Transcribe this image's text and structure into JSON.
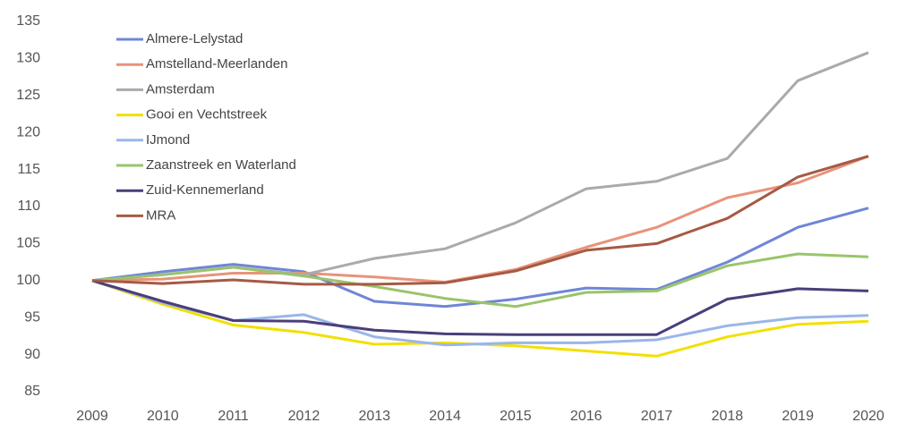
{
  "chart_data": {
    "type": "line",
    "categories": [
      "2009",
      "2010",
      "2011",
      "2012",
      "2013",
      "2014",
      "2015",
      "2016",
      "2017",
      "2018",
      "2019",
      "2020"
    ],
    "series": [
      {
        "name": "Almere-Lelystad",
        "color": "#6f86d6",
        "values": [
          100,
          101.2,
          102.2,
          101.2,
          97.2,
          96.5,
          97.5,
          99,
          98.8,
          102.5,
          107.2,
          109.8
        ]
      },
      {
        "name": "Amstelland-Meerlanden",
        "color": "#e8937a",
        "values": [
          100,
          100.2,
          101,
          101,
          100.5,
          99.8,
          101.5,
          104.5,
          107.2,
          111.2,
          113.2,
          116.8
        ]
      },
      {
        "name": "Amsterdam",
        "color": "#aaaaaa",
        "values": [
          100,
          100.8,
          101.8,
          100.8,
          103,
          104.3,
          107.8,
          112.4,
          113.4,
          116.5,
          127,
          130.8
        ]
      },
      {
        "name": "Gooi en Vechtstreek",
        "color": "#f2e000",
        "values": [
          100,
          96.8,
          94,
          93,
          91.4,
          91.6,
          91.2,
          90.5,
          89.8,
          92.4,
          94.1,
          94.5
        ]
      },
      {
        "name": "IJmond",
        "color": "#9ab6e8",
        "values": [
          100,
          97,
          94.6,
          95.4,
          92.4,
          91.3,
          91.6,
          91.6,
          92,
          93.9,
          95,
          95.3
        ]
      },
      {
        "name": "Zaanstreek en Waterland",
        "color": "#9ac46c",
        "values": [
          100,
          100.8,
          101.8,
          100.6,
          99.2,
          97.6,
          96.5,
          98.4,
          98.6,
          102,
          103.6,
          103.2
        ]
      },
      {
        "name": "Zuid-Kennemerland",
        "color": "#4b3e7a",
        "values": [
          100,
          97.2,
          94.6,
          94.5,
          93.3,
          92.8,
          92.7,
          92.7,
          92.7,
          97.5,
          98.9,
          98.6
        ]
      },
      {
        "name": "MRA",
        "color": "#a65a45",
        "values": [
          100,
          99.6,
          100.1,
          99.5,
          99.5,
          99.7,
          101.3,
          104.1,
          105,
          108.4,
          114,
          116.8
        ]
      }
    ],
    "ylim": [
      85,
      135
    ],
    "yticks": [
      85,
      90,
      95,
      100,
      105,
      110,
      115,
      120,
      125,
      130,
      135
    ],
    "legend": "upper left"
  }
}
